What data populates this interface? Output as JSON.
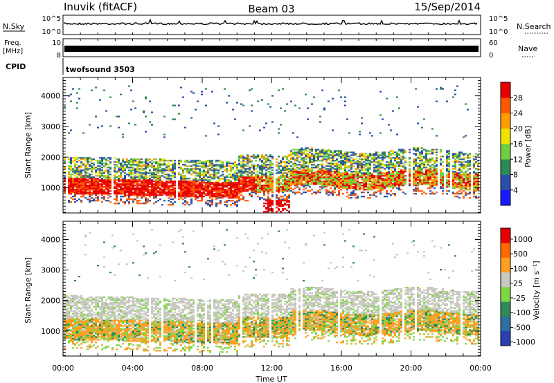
{
  "header": {
    "station": "Inuvik (fitACF)",
    "beam": "Beam 03",
    "date": "15/Sep/2014"
  },
  "top_panels": {
    "nsky": {
      "label": "N.Sky",
      "ticks": [
        "10^5",
        "10^0"
      ],
      "right_label": "N.Search",
      "right_ticks": [
        "10^5",
        "10^0"
      ]
    },
    "freq": {
      "label_line1": "Freq.",
      "label_line2": "[MHz]",
      "ticks": [
        "10",
        "8"
      ],
      "right_label": "Nave",
      "right_ticks": [
        "60",
        "0"
      ]
    },
    "cpid": {
      "label": "CPID",
      "value": "twofsound 3503"
    }
  },
  "colors": {
    "power": [
      "#1a1aff",
      "#2a4fa8",
      "#2e8a55",
      "#6fcf44",
      "#f2e200",
      "#ff9c00",
      "#ff5a00",
      "#e80000"
    ],
    "velocity": [
      "#2a3fb0",
      "#2d6fa0",
      "#2f8a58",
      "#7fd644",
      "#c8c8c0",
      "#ffa020",
      "#ff6a00",
      "#e80000"
    ]
  },
  "chart_data": [
    {
      "type": "heatmap",
      "name": "power",
      "ylabel": "Slant Range [km]",
      "ylim": [
        180,
        4600
      ],
      "yticks": [
        "1000",
        "2000",
        "3000",
        "4000"
      ],
      "xlim": [
        "00:00",
        "24:00"
      ],
      "colorbar": {
        "label": "Power [dB]",
        "ticks": [
          "4",
          "8",
          "12",
          "16",
          "20",
          "24",
          "28"
        ],
        "range": [
          0,
          32
        ]
      }
    },
    {
      "type": "heatmap",
      "name": "velocity",
      "ylabel": "Slant Range [km]",
      "ylim": [
        180,
        4600
      ],
      "yticks": [
        "1000",
        "2000",
        "3000",
        "4000"
      ],
      "xlabel": "Time UT",
      "xticks": [
        "00:00",
        "04:00",
        "08:00",
        "12:00",
        "16:00",
        "20:00",
        "00:00"
      ],
      "xlim": [
        "00:00",
        "24:00"
      ],
      "colorbar": {
        "label": "Velocity [m s⁻¹]",
        "ticks": [
          "1000",
          "500",
          "100",
          "25",
          "-25",
          "-100",
          "-500",
          "-1000"
        ]
      }
    }
  ]
}
